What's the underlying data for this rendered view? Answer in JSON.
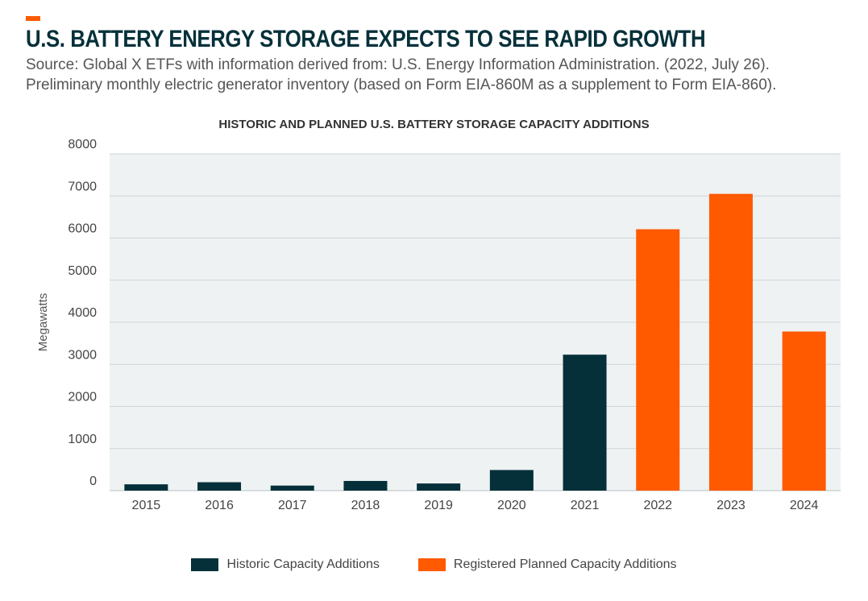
{
  "header": {
    "title": "U.S. BATTERY ENERGY STORAGE EXPECTS TO SEE RAPID GROWTH",
    "source_line1": "Source:  Global X ETFs with information derived from: U.S. Energy Information Administration. (2022, July 26).",
    "source_line2": "Preliminary monthly electric generator inventory (based on Form EIA-860M as a supplement to Form EIA-860)."
  },
  "colors": {
    "accent": "#FF5A00",
    "title": "#05303A",
    "historic": "#05303A",
    "planned": "#FF5A00",
    "plot_background": "#EEF2F3",
    "grid": "#CDD5D7"
  },
  "chart_data": {
    "type": "bar",
    "title": "HISTORIC AND PLANNED U.S. BATTERY STORAGE CAPACITY ADDITIONS",
    "xlabel": "",
    "ylabel": "Megawatts",
    "ylim": [
      0,
      8000
    ],
    "yticks": [
      0,
      1000,
      2000,
      3000,
      4000,
      5000,
      6000,
      7000,
      8000
    ],
    "grid": true,
    "legend_position": "bottom",
    "categories": [
      "2015",
      "2016",
      "2017",
      "2018",
      "2019",
      "2020",
      "2021",
      "2022",
      "2023",
      "2024"
    ],
    "series": [
      {
        "name": "Historic Capacity Additions",
        "values": [
          150,
          200,
          120,
          230,
          170,
          490,
          3230,
          null,
          null,
          null
        ]
      },
      {
        "name": "Registered Planned Capacity Additions",
        "values": [
          null,
          null,
          null,
          null,
          null,
          null,
          null,
          6210,
          7050,
          3780
        ]
      }
    ]
  }
}
